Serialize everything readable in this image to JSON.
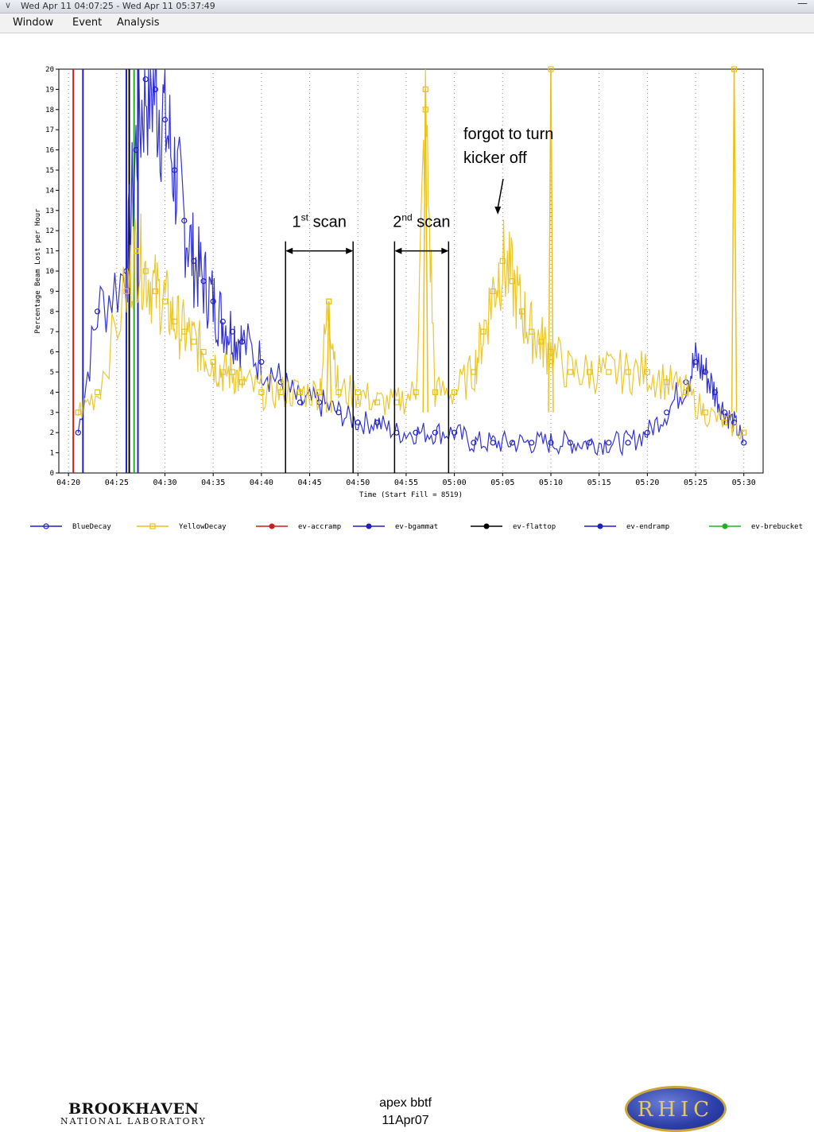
{
  "window": {
    "title": "Wed Apr 11 04:07:25 - Wed Apr 11 05:37:49",
    "chevron_icon": "chevron-down-icon",
    "minimize_icon": "minimize-icon"
  },
  "menu": {
    "items": [
      "Window",
      "Event",
      "Analysis"
    ]
  },
  "colors": {
    "blue": "#1f1fc8",
    "yellow": "#e8c21a",
    "red": "#c81e1e",
    "black": "#000000",
    "green": "#22b022",
    "grid": "#888888"
  },
  "chart_data": {
    "type": "line",
    "ylabel": "Percentage Beam Lost per Hour",
    "xlabel": "Time (Start Fill = 8519)",
    "ylim": [
      0,
      20
    ],
    "xlim": [
      "04:19",
      "05:32"
    ],
    "yticks": [
      0,
      1,
      2,
      3,
      4,
      5,
      6,
      7,
      8,
      9,
      10,
      11,
      12,
      13,
      14,
      15,
      16,
      17,
      18,
      19,
      20
    ],
    "xticks": [
      "04:20",
      "04:25",
      "04:30",
      "04:35",
      "04:40",
      "04:45",
      "04:50",
      "04:55",
      "05:00",
      "05:05",
      "05:10",
      "05:15",
      "05:20",
      "05:25",
      "05:30"
    ],
    "series": [
      {
        "name": "BlueDecay",
        "color": "blue",
        "marker": "circle",
        "x": [
          "04:21",
          "04:23",
          "04:26",
          "04:27",
          "04:28",
          "04:29",
          "04:30",
          "04:31",
          "04:32",
          "04:33",
          "04:34",
          "04:35",
          "04:36",
          "04:37",
          "04:38",
          "04:40",
          "04:42",
          "04:44",
          "04:46",
          "04:48",
          "04:50",
          "04:52",
          "04:54",
          "04:56",
          "04:58",
          "05:00",
          "05:02",
          "05:04",
          "05:06",
          "05:08",
          "05:10",
          "05:12",
          "05:14",
          "05:16",
          "05:18",
          "05:20",
          "05:22",
          "05:24",
          "05:25",
          "05:26",
          "05:27",
          "05:28",
          "05:29",
          "05:30"
        ],
        "y": [
          2,
          8,
          10,
          16,
          19.5,
          19,
          17.5,
          15,
          12.5,
          10.5,
          9.5,
          8.5,
          7.5,
          7,
          6.5,
          5.5,
          4.5,
          3.5,
          3.5,
          3,
          2.5,
          2.5,
          2,
          2,
          2,
          2,
          1.5,
          1.5,
          1.5,
          1.5,
          1.5,
          1.5,
          1.5,
          1.5,
          1.5,
          2,
          3,
          4.5,
          5.5,
          5,
          4,
          3,
          2.5,
          1.5
        ]
      },
      {
        "name": "YellowDecay",
        "color": "yellow",
        "marker": "square",
        "x": [
          "04:21",
          "04:23",
          "04:26",
          "04:27",
          "04:28",
          "04:29",
          "04:30",
          "04:31",
          "04:32",
          "04:33",
          "04:34",
          "04:35",
          "04:36",
          "04:37",
          "04:38",
          "04:40",
          "04:42",
          "04:44",
          "04:46",
          "04:47",
          "04:48",
          "04:50",
          "04:52",
          "04:54",
          "04:56",
          "04:57",
          "04:58",
          "05:00",
          "05:02",
          "05:03",
          "05:04",
          "05:05",
          "05:06",
          "05:07",
          "05:08",
          "05:09",
          "05:10",
          "05:12",
          "05:14",
          "05:16",
          "05:18",
          "05:20",
          "05:22",
          "05:24",
          "05:26",
          "05:28",
          "05:30"
        ],
        "y": [
          3,
          4,
          9,
          11,
          10,
          9,
          8.5,
          7.5,
          7,
          6.5,
          6,
          5.5,
          5,
          5,
          4.5,
          4,
          4,
          4,
          4,
          8.5,
          4,
          4,
          3.5,
          3.5,
          4,
          18,
          4,
          4,
          5,
          7,
          9,
          10.5,
          9.5,
          8,
          7,
          6.5,
          6,
          5,
          5,
          5,
          5,
          5,
          4.5,
          4,
          3,
          2.5,
          2
        ]
      }
    ],
    "event_series": [
      {
        "name": "ev-accramp",
        "color": "red",
        "x": [
          "04:20.5"
        ]
      },
      {
        "name": "ev-bgammat",
        "color": "blue",
        "x": [
          "04:21.5",
          "04:26"
        ]
      },
      {
        "name": "ev-flattop",
        "color": "black",
        "x": [
          "04:26.3"
        ]
      },
      {
        "name": "ev-endramp",
        "color": "blue",
        "x": [
          "04:27.2"
        ]
      },
      {
        "name": "ev-brebucket",
        "color": "green",
        "x": [
          "04:26.8"
        ]
      }
    ],
    "spikes": [
      {
        "series": "YellowDecay",
        "x": "04:47",
        "y": 8.5
      },
      {
        "series": "YellowDecay",
        "x": "04:57",
        "y": 19
      },
      {
        "series": "YellowDecay",
        "x": "05:10",
        "y": 20
      },
      {
        "series": "YellowDecay",
        "x": "05:29",
        "y": 20
      }
    ],
    "legend": [
      "BlueDecay",
      "YellowDecay",
      "ev-accramp",
      "ev-bgammat",
      "ev-flattop",
      "ev-endramp",
      "ev-brebucket"
    ],
    "legend_placement": "bottom",
    "annotations": {
      "scan1": {
        "label_main": "1",
        "label_sup": "st",
        "label_rest": "scan",
        "x_start": "04:42.5",
        "x_end": "04:49.5",
        "y": 11
      },
      "scan2": {
        "label_main": "2",
        "label_sup": "nd",
        "label_rest": "scan",
        "x_start": "04:53.8",
        "x_end": "04:59.4",
        "y": 11
      },
      "kicker": {
        "line1": "forgot to turn",
        "line2": "kicker off",
        "arrow_x": "05:04.5",
        "arrow_y": 12.8
      }
    },
    "grid": "vertical-dotted"
  },
  "footer": {
    "center_line1": "apex bbtf",
    "center_line2": "11Apr07",
    "left_logo_line1": "BROOKHAVEN",
    "left_logo_line2": "NATIONAL LABORATORY",
    "right_logo": "RHIC"
  }
}
